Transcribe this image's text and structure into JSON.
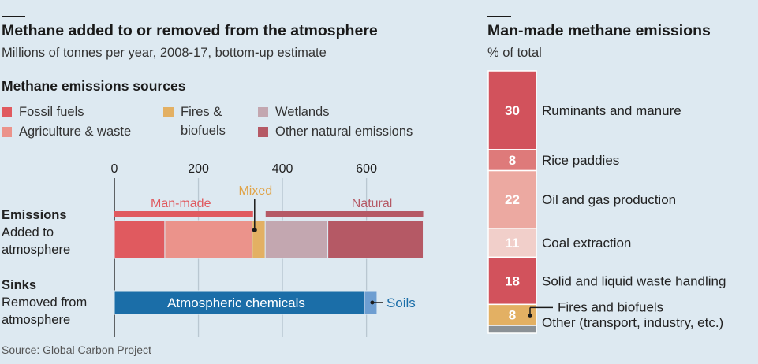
{
  "left": {
    "title": "Methane added to or removed from the atmosphere",
    "subtitle": "Millions of tonnes per year, 2008-17, bottom-up estimate",
    "legend_title": "Methane emissions sources",
    "legend": [
      {
        "label": "Fossil fuels",
        "color": "#e05a5f"
      },
      {
        "label": "Fires &\nbiofuels",
        "color": "#e3b063"
      },
      {
        "label": "Wetlands",
        "color": "#c3a7b0"
      },
      {
        "label": "Agriculture & waste",
        "color": "#eb938b"
      },
      {
        "label": "Other natural emissions",
        "color": "#b55965"
      }
    ],
    "rows": {
      "emissions_title": "Emissions",
      "emissions_sub": "Added to\natmosphere",
      "sinks_title": "Sinks",
      "sinks_sub": "Removed from\natmosphere"
    },
    "source": "Source: Global Carbon Project"
  },
  "right": {
    "title": "Man-made methane emissions",
    "subtitle": "% of total"
  },
  "chart_data": [
    {
      "type": "bar",
      "orientation": "horizontal",
      "stacked": true,
      "title": "Methane added to or removed from the atmosphere",
      "subtitle": "Millions of tonnes per year, 2008-17, bottom-up estimate",
      "xlim": [
        0,
        750
      ],
      "xticks": [
        0,
        200,
        400,
        600
      ],
      "grid": true,
      "categories": [
        "Emissions",
        "Sinks"
      ],
      "series": [
        {
          "name": "Fossil fuels",
          "category": "Emissions",
          "value": 120,
          "color": "#e05a5f"
        },
        {
          "name": "Agriculture & waste",
          "category": "Emissions",
          "value": 208,
          "color": "#eb938b"
        },
        {
          "name": "Fires & biofuels",
          "category": "Emissions",
          "value": 31,
          "color": "#e3b063"
        },
        {
          "name": "Wetlands",
          "category": "Emissions",
          "value": 149,
          "color": "#c3a7b0"
        },
        {
          "name": "Other natural emissions",
          "category": "Emissions",
          "value": 227,
          "color": "#b55965"
        },
        {
          "name": "Atmospheric chemicals",
          "category": "Sinks",
          "value": 595,
          "color": "#1b6ea8"
        },
        {
          "name": "Soils",
          "category": "Sinks",
          "value": 30,
          "color": "#6e9ed1"
        }
      ],
      "groups": [
        {
          "name": "Man-made",
          "from": 0,
          "to": 330,
          "color": "#e05a5f"
        },
        {
          "name": "Mixed",
          "from": 330,
          "to": 360,
          "color": "#e0a347"
        },
        {
          "name": "Natural",
          "from": 360,
          "to": 735,
          "color": "#b55965"
        }
      ],
      "annotations": [
        "Man-made",
        "Mixed",
        "Natural",
        "Atmospheric chemicals",
        "Soils"
      ]
    },
    {
      "type": "bar",
      "orientation": "vertical",
      "stacked": true,
      "title": "Man-made methane emissions",
      "subtitle": "% of total",
      "series": [
        {
          "name": "Ruminants and manure",
          "value": 30,
          "label": "30",
          "color": "#d2525c"
        },
        {
          "name": "Rice paddies",
          "value": 8,
          "label": "8",
          "color": "#de7a7a"
        },
        {
          "name": "Oil and gas production",
          "value": 22,
          "label": "22",
          "color": "#eca9a1"
        },
        {
          "name": "Coal extraction",
          "value": 11,
          "label": "11",
          "color": "#f1cfca"
        },
        {
          "name": "Solid and liquid waste handling",
          "value": 18,
          "label": "18",
          "color": "#d2525c"
        },
        {
          "name": "Fires and biofuels",
          "value": 8,
          "label": "8",
          "color": "#e3b063"
        },
        {
          "name": "Other (transport, industry, etc.)",
          "value": 3,
          "label": "",
          "color": "#8b9196"
        }
      ]
    }
  ]
}
